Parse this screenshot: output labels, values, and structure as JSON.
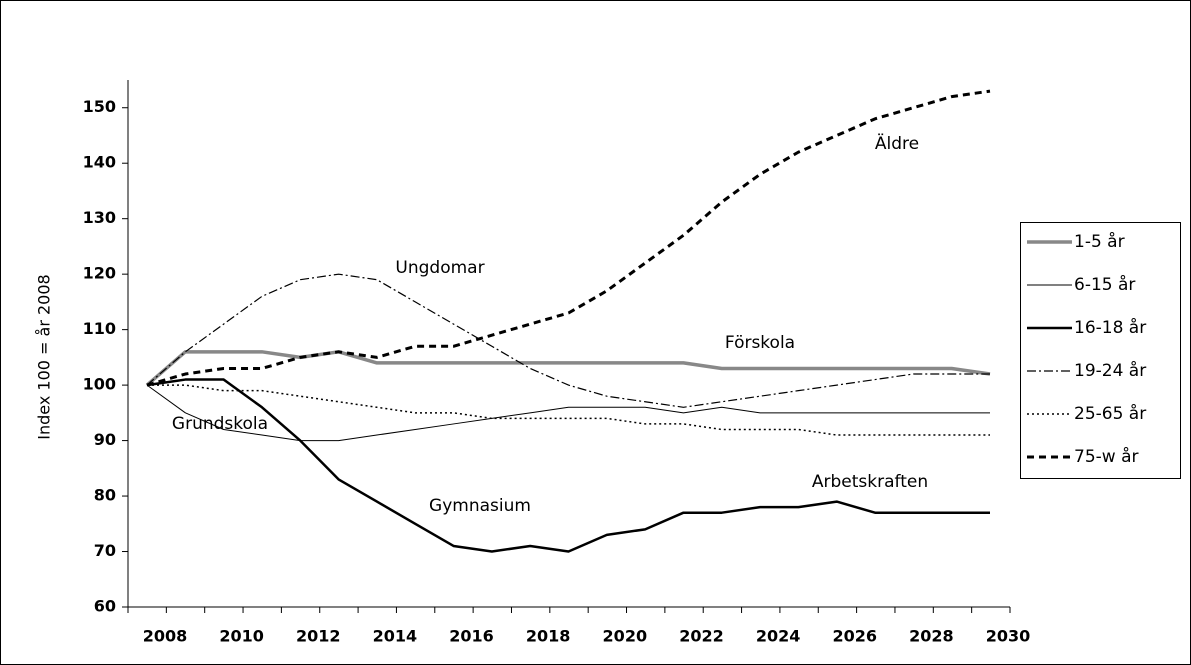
{
  "chart_data": {
    "type": "line",
    "ylabel": "Index 100 = år 2008",
    "categories": [
      "2008",
      null,
      "2010",
      null,
      "2012",
      null,
      "2014",
      null,
      "2016",
      null,
      "2018",
      null,
      "2020",
      null,
      "2022",
      null,
      "2024",
      null,
      "2026",
      null,
      "2028",
      null,
      "2030"
    ],
    "ylim": [
      60,
      155
    ],
    "yticks": [
      60,
      70,
      80,
      90,
      100,
      110,
      120,
      130,
      140,
      150
    ],
    "legend": "right",
    "series": [
      {
        "name": "1-5 år",
        "color": "#888888",
        "values": [
          100,
          106,
          106,
          106,
          105,
          106,
          104,
          104,
          104,
          104,
          104,
          104,
          104,
          104,
          104,
          103,
          103,
          103,
          103,
          103,
          103,
          103,
          102
        ]
      },
      {
        "name": "6-15 år",
        "color": "#000000",
        "values": [
          100,
          95,
          92,
          91,
          90,
          90,
          91,
          92,
          93,
          94,
          95,
          96,
          96,
          96,
          95,
          96,
          95,
          95,
          95,
          95,
          95,
          95,
          95
        ]
      },
      {
        "name": "16-18 år",
        "color": "#000000",
        "values": [
          100,
          101,
          101,
          96,
          90,
          83,
          79,
          75,
          71,
          70,
          71,
          70,
          73,
          74,
          77,
          77,
          78,
          78,
          79,
          77,
          77,
          77,
          77
        ]
      },
      {
        "name": "19-24 år",
        "color": "#000000",
        "values": [
          100,
          106,
          111,
          116,
          119,
          120,
          119,
          115,
          111,
          107,
          103,
          100,
          98,
          97,
          96,
          97,
          98,
          99,
          100,
          101,
          102,
          102,
          102
        ]
      },
      {
        "name": "25-65 år",
        "color": "#000000",
        "values": [
          100,
          100,
          99,
          99,
          98,
          97,
          96,
          95,
          95,
          94,
          94,
          94,
          94,
          93,
          93,
          92,
          92,
          92,
          91,
          91,
          91,
          91,
          91
        ]
      },
      {
        "name": "75-w år",
        "color": "#000000",
        "values": [
          100,
          102,
          103,
          103,
          105,
          106,
          105,
          107,
          107,
          109,
          111,
          113,
          117,
          122,
          127,
          133,
          138,
          142,
          145,
          148,
          150,
          152,
          153
        ]
      }
    ],
    "annotations": [
      "Äldre",
      "Ungdomar",
      "Förskola",
      "Grundskola",
      "Arbetskraften",
      "Gymnasium"
    ]
  }
}
